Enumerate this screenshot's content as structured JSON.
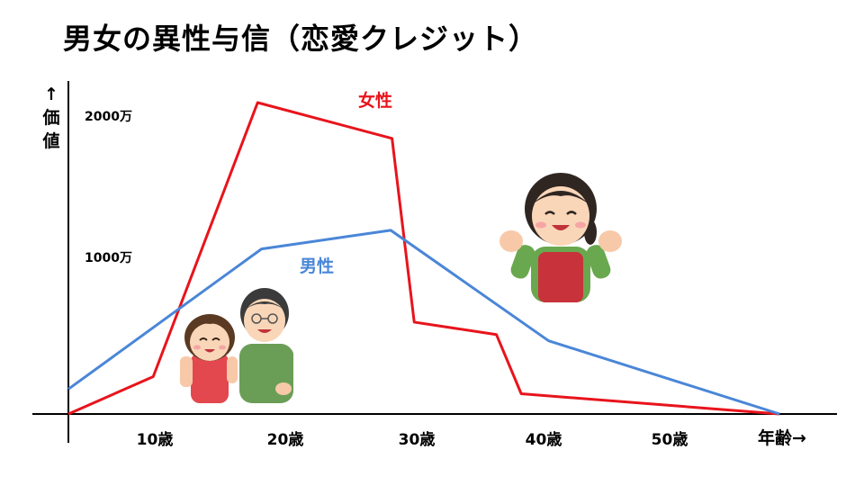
{
  "title": "男女の異性与信（恋愛クレジット）",
  "chart_data": {
    "type": "line",
    "title": "男女の異性与信（恋愛クレジット）",
    "ylabel": [
      "↑",
      "価",
      "値"
    ],
    "xlabel": "年齢→",
    "x_ticks": [
      "10歳",
      "20歳",
      "30歳",
      "40歳",
      "50歳"
    ],
    "x_tick_values": [
      10,
      20,
      30,
      40,
      50
    ],
    "y_ticks": [
      "1000万",
      "2000万"
    ],
    "y_tick_values": [
      1000,
      2000
    ],
    "xlim": [
      0,
      57
    ],
    "ylim": [
      0,
      2000
    ],
    "series": [
      {
        "name": "女性",
        "color": "#e8141c",
        "points": [
          [
            0,
            0
          ],
          [
            6.5,
            240
          ],
          [
            14.5,
            2000
          ],
          [
            24.8,
            1770
          ],
          [
            26.5,
            590
          ],
          [
            32.8,
            510
          ],
          [
            34.7,
            130
          ],
          [
            54.5,
            0
          ]
        ]
      },
      {
        "name": "男性",
        "color": "#4a86d8",
        "points": [
          [
            0,
            160
          ],
          [
            14.8,
            1060
          ],
          [
            24.7,
            1180
          ],
          [
            36.8,
            470
          ],
          [
            54.5,
            0
          ]
        ]
      }
    ],
    "grid": false,
    "legend": "inline labels"
  },
  "illustrations": [
    "couple-illustration",
    "woman-waving-illustration"
  ]
}
